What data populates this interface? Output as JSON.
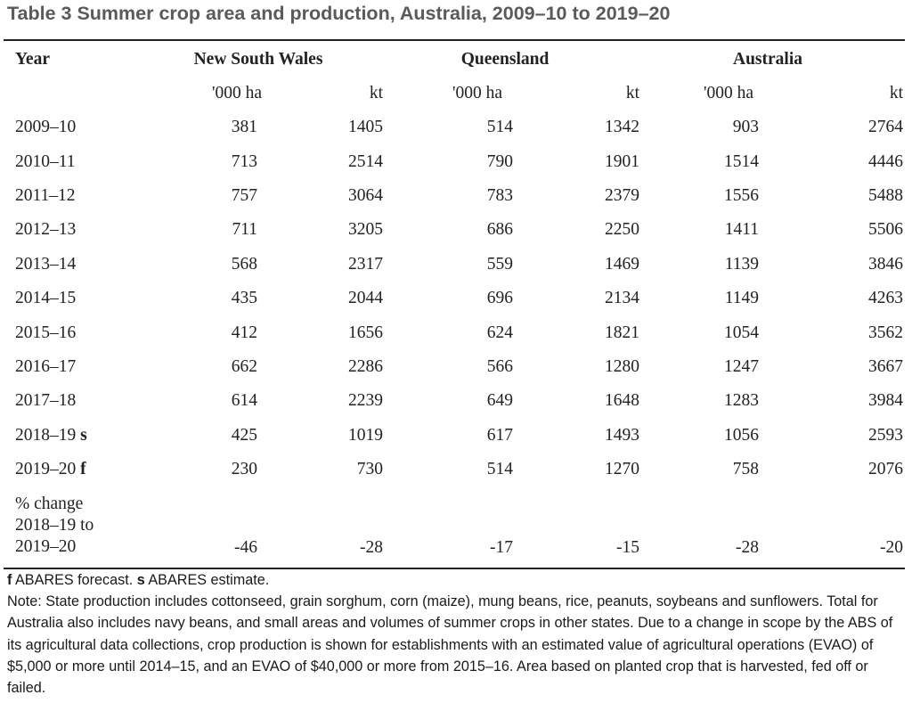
{
  "title": "Table 3 Summer crop area and production, Australia, 2009–10 to 2019–20",
  "header": {
    "year": "Year",
    "nsw": "New South Wales",
    "qld": "Queensland",
    "aus": "Australia"
  },
  "units": {
    "area": "'000 ha",
    "prod": "kt"
  },
  "rows": [
    {
      "year": "2009–10",
      "suffix": "",
      "nsw_ha": "381",
      "nsw_kt": "1405",
      "qld_ha": "514",
      "qld_kt": "1342",
      "aus_ha": "903",
      "aus_kt": "2764"
    },
    {
      "year": "2010–11",
      "suffix": "",
      "nsw_ha": "713",
      "nsw_kt": "2514",
      "qld_ha": "790",
      "qld_kt": "1901",
      "aus_ha": "1514",
      "aus_kt": "4446"
    },
    {
      "year": "2011–12",
      "suffix": "",
      "nsw_ha": "757",
      "nsw_kt": "3064",
      "qld_ha": "783",
      "qld_kt": "2379",
      "aus_ha": "1556",
      "aus_kt": "5488"
    },
    {
      "year": "2012–13",
      "suffix": "",
      "nsw_ha": "711",
      "nsw_kt": "3205",
      "qld_ha": "686",
      "qld_kt": "2250",
      "aus_ha": "1411",
      "aus_kt": "5506"
    },
    {
      "year": "2013–14",
      "suffix": "",
      "nsw_ha": "568",
      "nsw_kt": "2317",
      "qld_ha": "559",
      "qld_kt": "1469",
      "aus_ha": "1139",
      "aus_kt": "3846"
    },
    {
      "year": "2014–15",
      "suffix": "",
      "nsw_ha": "435",
      "nsw_kt": "2044",
      "qld_ha": "696",
      "qld_kt": "2134",
      "aus_ha": "1149",
      "aus_kt": "4263"
    },
    {
      "year": "2015–16",
      "suffix": "",
      "nsw_ha": "412",
      "nsw_kt": "1656",
      "qld_ha": "624",
      "qld_kt": "1821",
      "aus_ha": "1054",
      "aus_kt": "3562"
    },
    {
      "year": "2016–17",
      "suffix": "",
      "nsw_ha": "662",
      "nsw_kt": "2286",
      "qld_ha": "566",
      "qld_kt": "1280",
      "aus_ha": "1247",
      "aus_kt": "3667"
    },
    {
      "year": "2017–18",
      "suffix": "",
      "nsw_ha": "614",
      "nsw_kt": "2239",
      "qld_ha": "649",
      "qld_kt": "1648",
      "aus_ha": "1283",
      "aus_kt": "3984"
    },
    {
      "year": "2018–19",
      "suffix": "s",
      "nsw_ha": "425",
      "nsw_kt": "1019",
      "qld_ha": "617",
      "qld_kt": "1493",
      "aus_ha": "1056",
      "aus_kt": "2593"
    },
    {
      "year": "2019–20",
      "suffix": "f",
      "nsw_ha": "230",
      "nsw_kt": "730",
      "qld_ha": "514",
      "qld_kt": "1270",
      "aus_ha": "758",
      "aus_kt": "2076"
    }
  ],
  "pct_change": {
    "label_1": "% change",
    "label_2": "2018–19 to",
    "label_3": "2019–20",
    "nsw_ha": "-46",
    "nsw_kt": "-28",
    "qld_ha": "-17",
    "qld_kt": "-15",
    "aus_ha": "-28",
    "aus_kt": "-20"
  },
  "footnotes": {
    "f_marker": "f",
    "f_text": " ABARES forecast. ",
    "s_marker": "s",
    "s_text": " ABARES estimate.",
    "note": "Note: State production includes cottonseed, grain sorghum, corn (maize), mung beans, rice, peanuts, soybeans and sunflowers. Total for Australia also includes navy beans, and small areas and volumes of summer crops in other states. Due to a change in scope by the ABS of its agricultural data collections, crop production is shown for establishments with an estimated value of agricultural operations (EVAO) of $5,000 or more until 2014–15, and an EVAO of $40,000 or more from 2015–16. Area based on planted crop that is harvested, fed off or failed."
  }
}
